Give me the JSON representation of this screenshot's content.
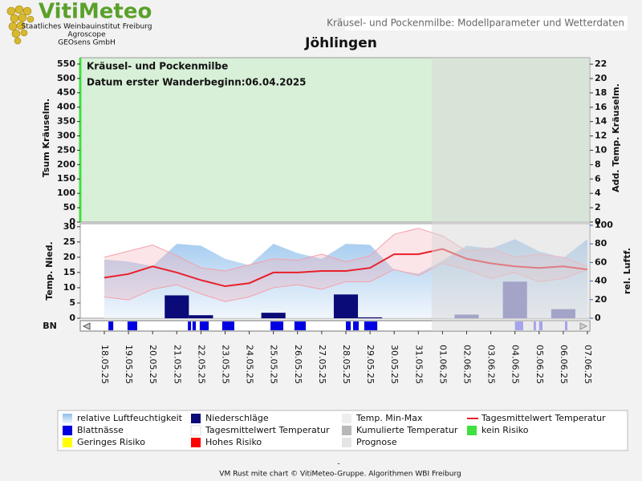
{
  "header": {
    "logo": "VitiMeteo",
    "org_lines": [
      "Staatliches Weinbauinstitut Freiburg",
      "Agroscope",
      "GEOsens GmbH"
    ],
    "banner": "Kräusel- und Pockenmilbe: Modellparameter und Wetterdaten"
  },
  "chart_data": {
    "type": "combo",
    "title": "Jöhlingen",
    "annotations": [
      "Kräusel- und Pockenmilbe",
      "Datum  erster Wanderbeginn:06.04.2025"
    ],
    "top": {
      "ylabel": "Tsum Kräuselm.",
      "y2label": "Add. Temp. Kräuselm.",
      "ylim": [
        0,
        572
      ],
      "yticks": [
        0,
        50,
        100,
        150,
        200,
        250,
        300,
        350,
        400,
        450,
        500,
        550
      ],
      "y2lim": [
        0,
        22.9
      ],
      "y2ticks": [
        0,
        2,
        4,
        6,
        8,
        10,
        12,
        14,
        16,
        18,
        20,
        22
      ],
      "color": "#d8f0d8"
    },
    "bottom": {
      "ylabel": "Temp. Nied.",
      "y2label": "rel. Luftf.",
      "ylim": [
        0,
        31
      ],
      "yticks": [
        0,
        5,
        10,
        15,
        20,
        25,
        30
      ],
      "y2lim": [
        0,
        101.7
      ],
      "y2ticks": [
        0,
        20,
        40,
        60,
        80,
        100
      ],
      "bn_label": "BN"
    },
    "categories": [
      "18.05.25",
      "19.05.25",
      "20.05.25",
      "21.05.25",
      "22.05.25",
      "23.05.25",
      "24.05.25",
      "25.05.25",
      "26.05.25",
      "27.05.25",
      "28.05.25",
      "29.05.25",
      "30.05.25",
      "31.05.25",
      "01.06.25",
      "02.06.25",
      "03.06.25",
      "04.06.25",
      "05.06.25",
      "06.06.25",
      "07.06.25"
    ],
    "prognose_start": "01.06.25",
    "series": [
      {
        "name": "relative Luftfeuchtigkeit",
        "axis": "y2",
        "color": "#8fbfec",
        "values": [
          63,
          61,
          56,
          80,
          78,
          64,
          57,
          80,
          70,
          64,
          80,
          79,
          52,
          48,
          62,
          78,
          75,
          85,
          72,
          65,
          85
        ]
      },
      {
        "name": "Temp. Min",
        "color": "#f4a0a8",
        "values": [
          7,
          6,
          9.5,
          11,
          8,
          5.5,
          7,
          10,
          11,
          9.5,
          12,
          12,
          16,
          14,
          18,
          16,
          13,
          15,
          12,
          13,
          16
        ]
      },
      {
        "name": "Temp. Max",
        "color": "#f4a0a8",
        "values": [
          20,
          22,
          24,
          20.5,
          16.5,
          15.5,
          17.5,
          19.5,
          19,
          21,
          18.5,
          20.5,
          27.5,
          29.5,
          27,
          22,
          23,
          20,
          21,
          20,
          17
        ]
      },
      {
        "name": "Tagesmittelwert Temperatur",
        "color": "#e8202a",
        "values": [
          13.3,
          14.5,
          17,
          15,
          12.5,
          10.5,
          11.5,
          15,
          15,
          15.5,
          15.5,
          16.5,
          21,
          21,
          22.7,
          19.5,
          18,
          17,
          16.5,
          17,
          16
        ]
      },
      {
        "name": "Niederschläge",
        "color": "#0a0a78",
        "prognose_color": "#7070b8",
        "values": [
          0,
          0,
          0,
          7.5,
          1,
          0,
          0,
          1.8,
          0,
          0,
          7.8,
          0.3,
          0,
          0,
          0,
          1.2,
          0,
          12,
          0,
          3,
          0
        ]
      }
    ],
    "leaf_wetness": {
      "color": "#0000e0",
      "prognose_color": "#7070ff",
      "intervals": [
        [
          0.17,
          0.37
        ],
        [
          0.96,
          1.36
        ],
        [
          3.46,
          3.59
        ],
        [
          3.65,
          3.79
        ],
        [
          3.95,
          4.32
        ],
        [
          4.88,
          5.38
        ],
        [
          6.88,
          7.41
        ],
        [
          7.87,
          8.34
        ],
        [
          10.0,
          10.2
        ],
        [
          10.3,
          10.53
        ],
        [
          10.76,
          11.3
        ],
        [
          17.0,
          17.34
        ],
        [
          17.77,
          17.87
        ],
        [
          18.0,
          18.14
        ],
        [
          19.07,
          19.17
        ]
      ]
    },
    "legend": [
      {
        "name": "relative Luftfeuchtigkeit",
        "color": "#8fbfec",
        "symbol": "gradient"
      },
      {
        "name": "Niederschläge",
        "color": "#0a0a78",
        "symbol": "box"
      },
      {
        "name": "Temp. Min-Max",
        "color": "#eeeeee",
        "symbol": "box"
      },
      {
        "name": "Tagesmittelwert Temperatur",
        "color": "#e8202a",
        "symbol": "line"
      },
      {
        "name": "Blattnässe",
        "color": "#0000e0",
        "symbol": "box"
      },
      {
        "name": "Tagesmittelwert Temperatur",
        "color": "#ffffff",
        "symbol": "box"
      },
      {
        "name": "Kumulierte Temperatur",
        "color": "#b8b8b8",
        "symbol": "box"
      },
      {
        "name": "kein Risiko",
        "color": "#40e040",
        "symbol": "box"
      },
      {
        "name": "Geringes Risiko",
        "color": "#ffff00",
        "symbol": "box"
      },
      {
        "name": "Hohes Risiko",
        "color": "#ff0000",
        "symbol": "box"
      },
      {
        "name": "Prognose",
        "color": "#e4e4e4",
        "symbol": "box"
      }
    ]
  },
  "footer": {
    "dash": "-",
    "credit": "VM Rust mite chart © VitiMeteo-Gruppe. Algorithmen WBI Freiburg"
  }
}
